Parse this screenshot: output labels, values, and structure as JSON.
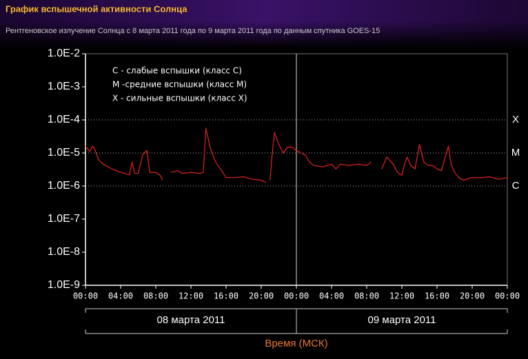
{
  "chart_data": {
    "type": "line",
    "title": "График вспышечной активности Солнца",
    "subtitle": "Рентгеновское излучение Солнца с 8 марта 2011 года по 9 марта 2011 года по данным спутника GOES-15",
    "x_label": "Время (МСК)",
    "log_scale": true,
    "annotations": [
      "C - слабые вспышки (класс C)",
      "M -средние вспышки (класс M)",
      "X - сильные вспышки (класс X)"
    ],
    "day_labels": [
      "08 марта 2011",
      "09 марта 2011"
    ],
    "class_lines": [
      {
        "value": 0.0001,
        "label": "X"
      },
      {
        "value": 1e-05,
        "label": "M"
      },
      {
        "value": 1e-06,
        "label": "C"
      }
    ],
    "xlim": [
      0,
      48
    ],
    "xticks": [
      {
        "value": 0,
        "label": "00:00"
      },
      {
        "value": 4,
        "label": "04:00"
      },
      {
        "value": 8,
        "label": "08:00"
      },
      {
        "value": 12,
        "label": "12:00"
      },
      {
        "value": 16,
        "label": "16:00"
      },
      {
        "value": 20,
        "label": "20:00"
      },
      {
        "value": 24,
        "label": "00:00"
      },
      {
        "value": 28,
        "label": "04:00"
      },
      {
        "value": 32,
        "label": "08:00"
      },
      {
        "value": 36,
        "label": "12:00"
      },
      {
        "value": 40,
        "label": "16:00"
      },
      {
        "value": 44,
        "label": "20:00"
      },
      {
        "value": 48,
        "label": "00:00"
      }
    ],
    "ylim": [
      1e-09,
      0.01
    ],
    "yticks": [
      {
        "value": 1e-09,
        "label": "1.0E-9"
      },
      {
        "value": 1e-08,
        "label": "1.0E-8"
      },
      {
        "value": 1e-07,
        "label": "1.0E-7"
      },
      {
        "value": 1e-06,
        "label": "1.0E-6"
      },
      {
        "value": 1e-05,
        "label": "1.0E-5"
      },
      {
        "value": 0.0001,
        "label": "1.0E-4"
      },
      {
        "value": 0.001,
        "label": "1.0E-3"
      },
      {
        "value": 0.01,
        "label": "1.0E-2"
      }
    ],
    "x": [
      0,
      0.5,
      0.8,
      1,
      1.5,
      2,
      3,
      4,
      5,
      5.3,
      5.6,
      6,
      6.5,
      7,
      7.3,
      8,
      8.5,
      8.8,
      9.2,
      9.7,
      10.5,
      11,
      12,
      13,
      13.4,
      13.7,
      14.2,
      14.8,
      15.5,
      16,
      17,
      18,
      19,
      20,
      20.5,
      20.9,
      21,
      21.2,
      21.5,
      22,
      22.5,
      23,
      23.5,
      24,
      24.5,
      25,
      25.5,
      26,
      27,
      28,
      28.5,
      29,
      30,
      31,
      32,
      32.5,
      33.1,
      33.7,
      34.3,
      35,
      35.5,
      36,
      36.3,
      36.6,
      37,
      37.5,
      38,
      38.5,
      39,
      39.5,
      40,
      40.5,
      41,
      41.3,
      41.6,
      42,
      42.5,
      43,
      44,
      45,
      46,
      47,
      48
    ],
    "series": [
      {
        "name": "GOES-15",
        "color": "#e8231e",
        "values": [
          1.6e-05,
          1.1e-05,
          1.6e-05,
          1.4e-05,
          6.2e-06,
          4.6e-06,
          3.3e-06,
          2.6e-06,
          2.2e-06,
          5.3e-06,
          2.4e-06,
          2.4e-06,
          8.7e-06,
          1.2e-05,
          2.6e-06,
          2.6e-06,
          2.1e-06,
          1.5e-06,
          null,
          2.6e-06,
          2.9e-06,
          2.4e-06,
          2.6e-06,
          2.4e-06,
          2.6e-06,
          5.6e-05,
          1.4e-05,
          5.3e-06,
          2.9e-06,
          1.8e-06,
          1.8e-06,
          1.9e-06,
          1.6e-06,
          1.5e-06,
          1.3e-06,
          null,
          1.5e-06,
          6.8e-06,
          4.2e-05,
          1.8e-05,
          1e-05,
          1.5e-05,
          1.5e-05,
          1.2e-05,
          1e-05,
          8.7e-06,
          5.3e-06,
          4.2e-06,
          3.8e-06,
          4.6e-06,
          3.3e-06,
          4.6e-06,
          4.2e-06,
          4.6e-06,
          4.2e-06,
          5.3e-06,
          null,
          3.3e-06,
          7.5e-06,
          4.6e-06,
          2.6e-06,
          2.1e-06,
          4.6e-06,
          7.5e-06,
          4.2e-06,
          3.3e-06,
          1.8e-05,
          5.3e-06,
          4.2e-06,
          4.2e-06,
          3.3e-06,
          2.9e-06,
          8.7e-06,
          1.6e-05,
          4.6e-06,
          2.6e-06,
          1.8e-06,
          1.5e-06,
          1.8e-06,
          1.8e-06,
          1.9e-06,
          1.6e-06,
          1.8e-06
        ]
      }
    ]
  }
}
